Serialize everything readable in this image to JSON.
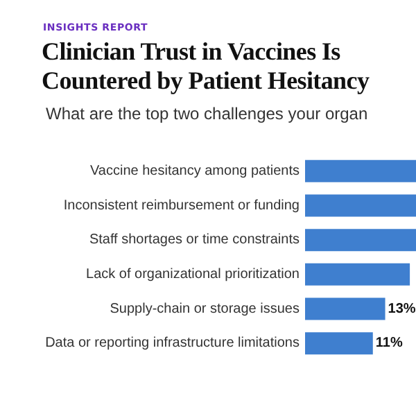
{
  "chart_data": {
    "type": "bar",
    "orientation": "horizontal",
    "title": "Clinician Trust in Vaccines Is Countered by Patient Hesitancy",
    "subtitle": "What are the top two challenges your organ",
    "annotations": [
      "INSIGHTS REPORT"
    ],
    "categories": [
      "Vaccine hesitancy among patients",
      "Inconsistent reimbursement or funding",
      "Staff shortages or time constraints",
      "Lack of organizational prioritization",
      "Supply-chain or storage issues",
      "Data or reporting infrastructure limitations"
    ],
    "values": [
      18,
      18,
      18,
      17,
      13,
      11
    ],
    "value_labels": [
      null,
      null,
      null,
      null,
      "13%",
      "11%"
    ],
    "color": "#3f7fcf",
    "xlim": [
      0,
      18
    ],
    "tick_labels": "y",
    "grid": false
  }
}
